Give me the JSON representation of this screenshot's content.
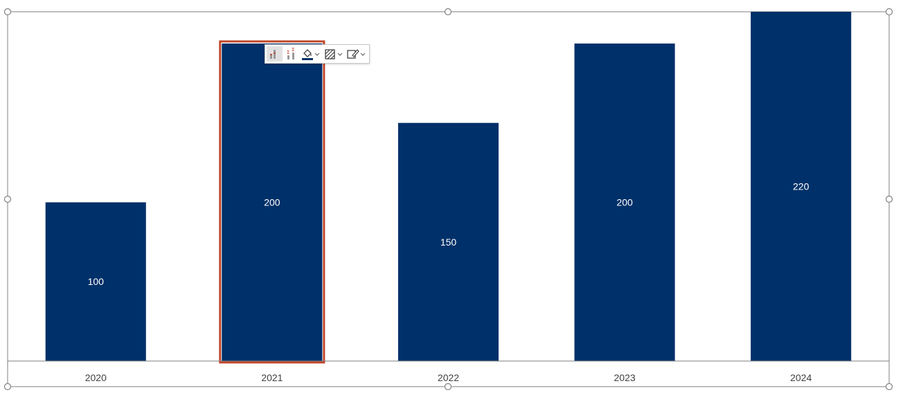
{
  "chart_data": {
    "type": "bar",
    "categories": [
      "2020",
      "2021",
      "2022",
      "2023",
      "2024"
    ],
    "values": [
      100,
      200,
      150,
      200,
      220
    ],
    "data_labels": [
      "100",
      "200",
      "150",
      "200",
      "220"
    ],
    "ylim": [
      0,
      220
    ],
    "grid": false,
    "legend": "none",
    "selected_category": "2021"
  },
  "colors": {
    "bar": "#003069",
    "selection": "#c0472b",
    "axis": "#7f7f7f",
    "tick_text": "#404040"
  },
  "toolbar": {
    "items": [
      {
        "icon": "chart-elements-icon",
        "active": true,
        "has_dropdown": false
      },
      {
        "icon": "sum-bars-icon",
        "active": false,
        "has_dropdown": false
      },
      {
        "icon": "paint-bucket-icon",
        "active": false,
        "has_dropdown": true
      },
      {
        "icon": "hatch-fill-icon",
        "active": false,
        "has_dropdown": true
      },
      {
        "icon": "outline-pen-icon",
        "active": false,
        "has_dropdown": true
      }
    ]
  }
}
